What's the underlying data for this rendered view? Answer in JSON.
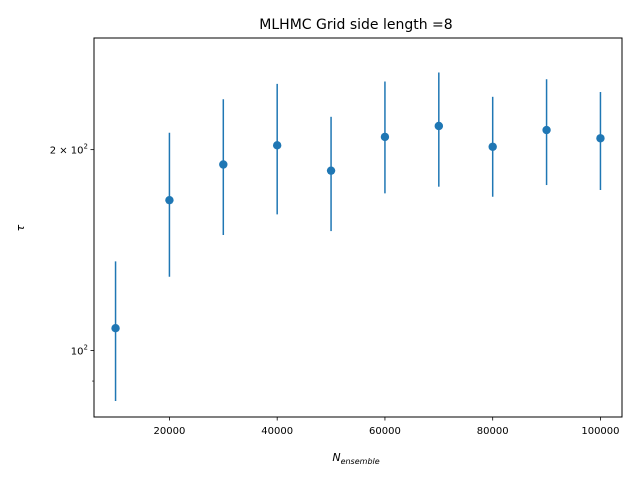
{
  "chart_data": {
    "type": "scatter",
    "title": "MLHMC Grid side length =8",
    "xlabel_base": "N",
    "xlabel_sub": "ensemble",
    "ylabel": "τ",
    "xlim": [
      6000,
      104000
    ],
    "ylim": [
      79.5,
      294
    ],
    "yscale": "log",
    "grid": false,
    "color": "#1f77b4",
    "x_ticks": [
      {
        "value": 20000,
        "label": "20000"
      },
      {
        "value": 40000,
        "label": "40000"
      },
      {
        "value": 60000,
        "label": "60000"
      },
      {
        "value": 80000,
        "label": "80000"
      },
      {
        "value": 100000,
        "label": "100000"
      }
    ],
    "y_major_ticks": [
      {
        "value": 100,
        "base": "10",
        "exp": "2"
      },
      {
        "value": 200,
        "base": "2 × 10",
        "exp": "2"
      }
    ],
    "y_minor_ticks": [
      90
    ],
    "points": [
      {
        "x": 10000,
        "y": 108,
        "lo": 84,
        "hi": 136
      },
      {
        "x": 20000,
        "y": 168,
        "lo": 129,
        "hi": 212
      },
      {
        "x": 30000,
        "y": 190,
        "lo": 149,
        "hi": 238
      },
      {
        "x": 40000,
        "y": 203,
        "lo": 160,
        "hi": 251
      },
      {
        "x": 50000,
        "y": 186,
        "lo": 151,
        "hi": 224
      },
      {
        "x": 60000,
        "y": 209,
        "lo": 172,
        "hi": 253
      },
      {
        "x": 70000,
        "y": 217,
        "lo": 176,
        "hi": 261
      },
      {
        "x": 80000,
        "y": 202,
        "lo": 170,
        "hi": 240
      },
      {
        "x": 90000,
        "y": 214,
        "lo": 177,
        "hi": 255
      },
      {
        "x": 100000,
        "y": 208,
        "lo": 174,
        "hi": 244
      }
    ]
  }
}
